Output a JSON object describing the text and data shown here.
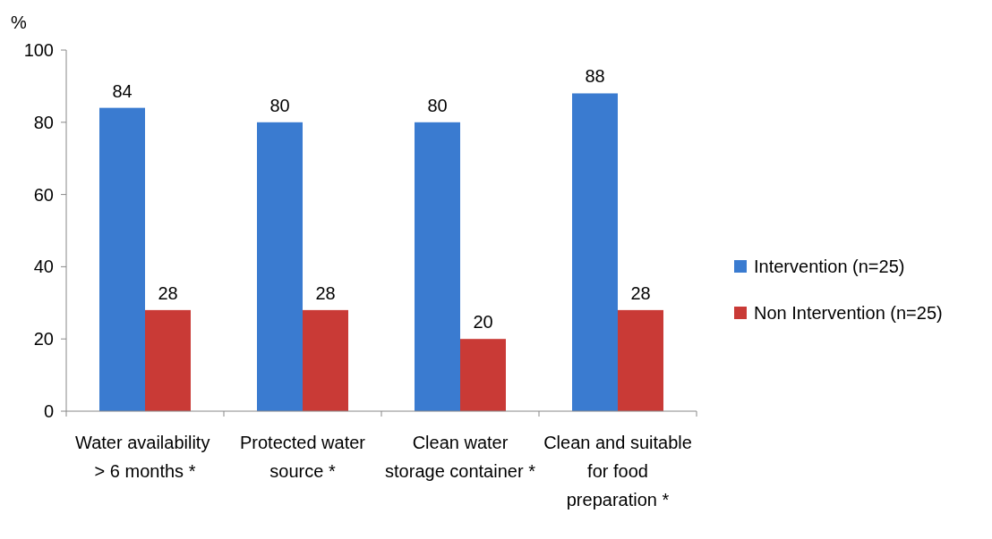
{
  "chart_data": {
    "type": "bar",
    "ylabel": "%",
    "categories": [
      "Water availability  > 6 months *",
      "Protected water source *",
      "Clean water storage container *",
      "Clean and suitable for food preparation *"
    ],
    "series": [
      {
        "name": "Intervention (n=25)",
        "color": "#3a7bd0",
        "values": [
          84,
          80,
          80,
          88
        ]
      },
      {
        "name": "Non Intervention (n=25)",
        "color": "#c93a36",
        "values": [
          28,
          28,
          20,
          28
        ]
      }
    ],
    "ylim": [
      0,
      100
    ],
    "yticks": [
      0,
      20,
      40,
      60,
      80,
      100
    ],
    "data_labels": true,
    "legend": "right",
    "grid": false
  }
}
